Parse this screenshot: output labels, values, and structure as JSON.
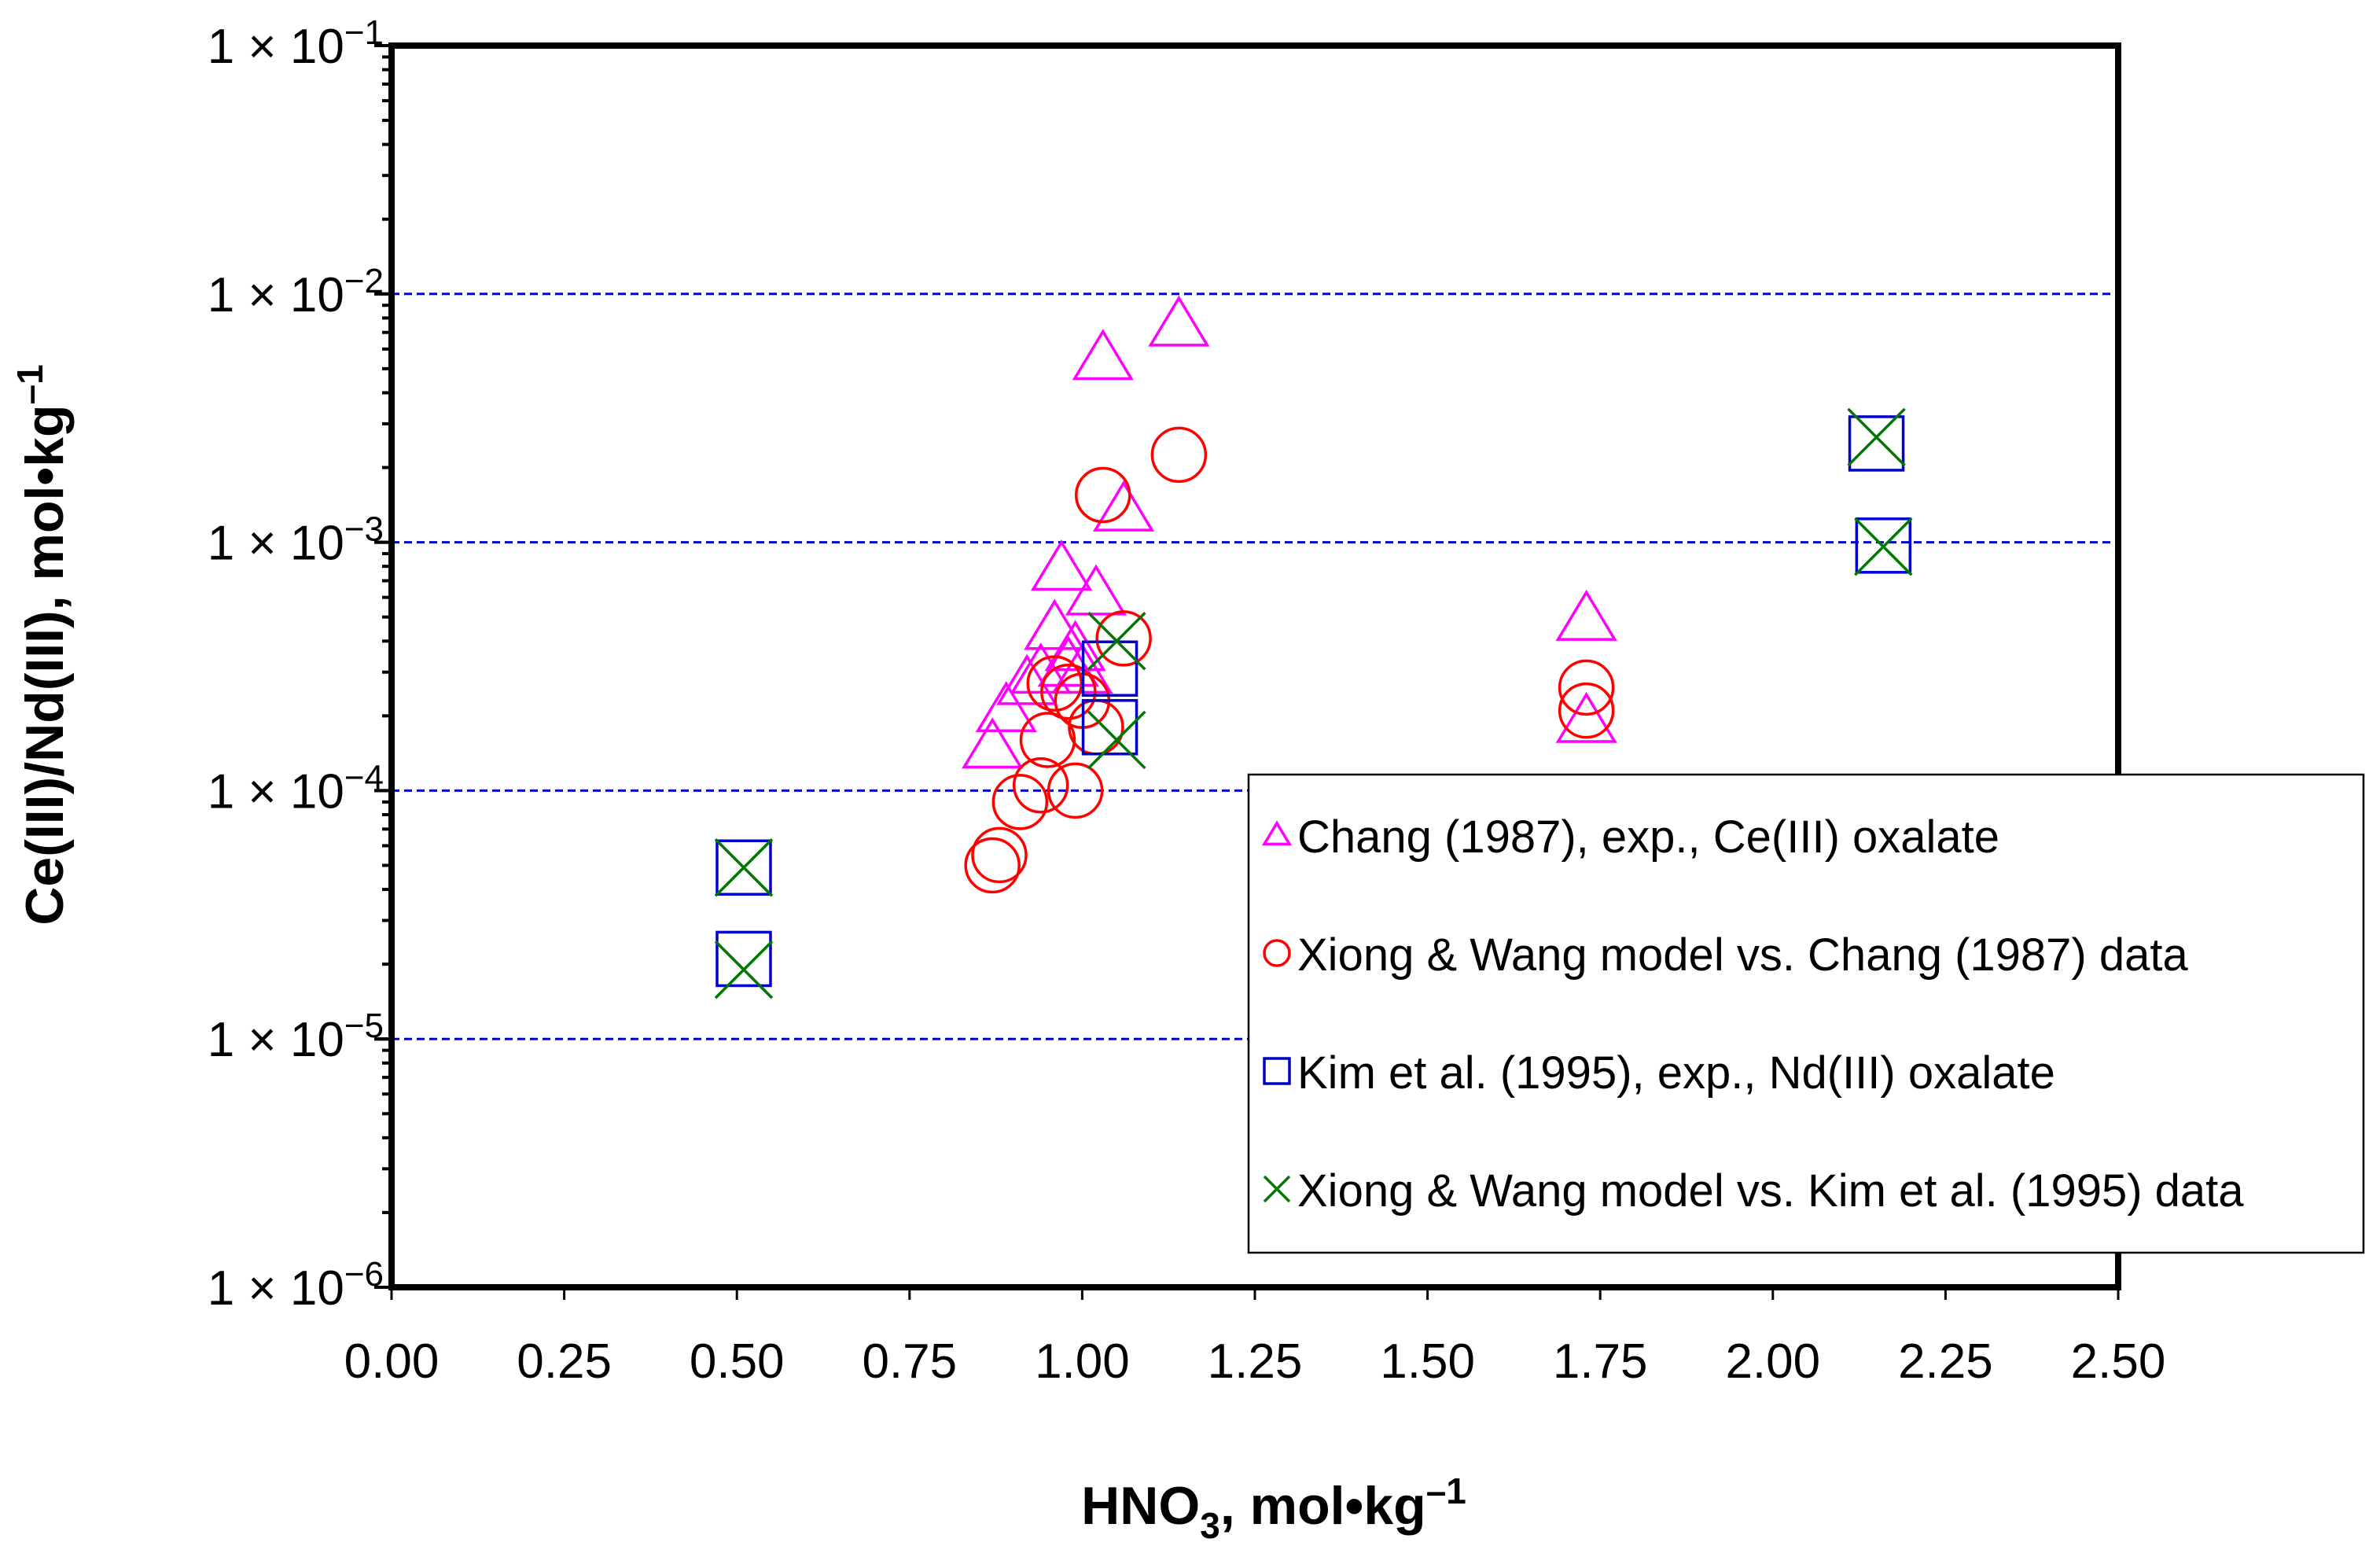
{
  "chart_data": {
    "type": "scatter",
    "title": "",
    "xlabel": {
      "main": "HNO",
      "sub": "3",
      "tail": ", mol•kg",
      "sup": "–1"
    },
    "ylabel": {
      "main": "Ce(III)/Nd(III), mol•kg",
      "sup": "–1"
    },
    "xlim": [
      0,
      2.5
    ],
    "ylim": [
      1e-06,
      0.1
    ],
    "yscale": "log",
    "x_ticks": [
      {
        "value": 0.0,
        "label": "0.00"
      },
      {
        "value": 0.25,
        "label": "0.25"
      },
      {
        "value": 0.5,
        "label": "0.50"
      },
      {
        "value": 0.75,
        "label": "0.75"
      },
      {
        "value": 1.0,
        "label": "1.00"
      },
      {
        "value": 1.25,
        "label": "1.25"
      },
      {
        "value": 1.5,
        "label": "1.50"
      },
      {
        "value": 1.75,
        "label": "1.75"
      },
      {
        "value": 2.0,
        "label": "2.00"
      },
      {
        "value": 2.25,
        "label": "2.25"
      },
      {
        "value": 2.5,
        "label": "2.50"
      }
    ],
    "y_ticks": [
      {
        "value": 0.1,
        "base": "1 × 10",
        "exp": "−1"
      },
      {
        "value": 0.01,
        "base": "1 × 10",
        "exp": "−2"
      },
      {
        "value": 0.001,
        "base": "1 × 10",
        "exp": "−3"
      },
      {
        "value": 0.0001,
        "base": "1 × 10",
        "exp": "−4"
      },
      {
        "value": 1e-05,
        "base": "1 × 10",
        "exp": "−5"
      },
      {
        "value": 1e-06,
        "base": "1 × 10",
        "exp": "−6"
      }
    ],
    "gridlines_y": [
      0.01,
      0.001,
      0.0001,
      1e-05
    ],
    "legend_position": "lower-right",
    "series": [
      {
        "name": "Chang (1987), exp., Ce(III) oxalate",
        "marker": "triangle",
        "color": "#ff00ff",
        "x": [
          0.87,
          0.89,
          0.92,
          0.94,
          0.96,
          0.97,
          0.98,
          0.99,
          1.0,
          1.02,
          1.03,
          1.06,
          1.14,
          1.73,
          1.73
        ],
        "y": [
          0.00015,
          0.00021,
          0.00027,
          0.0003,
          0.00045,
          0.00078,
          0.00032,
          0.00037,
          0.0003,
          0.00062,
          0.0055,
          0.00135,
          0.0075,
          0.00049,
          0.00019
        ]
      },
      {
        "name": "Xiong & Wang model vs. Chang (1987) data",
        "marker": "circle",
        "color": "#ff0000",
        "x": [
          0.87,
          0.88,
          0.91,
          0.94,
          0.95,
          0.96,
          0.98,
          0.99,
          1.0,
          1.02,
          1.03,
          1.06,
          1.14,
          1.73,
          1.73
        ],
        "y": [
          5e-05,
          5.5e-05,
          9e-05,
          0.000105,
          0.00016,
          0.00027,
          0.00025,
          0.0001,
          0.00023,
          0.00018,
          0.00155,
          0.00041,
          0.00225,
          0.00026,
          0.00021
        ]
      },
      {
        "name": "Kim et al. (1995), exp., Nd(III) oxalate",
        "marker": "square",
        "color": "#0000cc",
        "x": [
          0.51,
          0.51,
          1.04,
          1.04,
          2.15,
          2.16
        ],
        "y": [
          4.9e-05,
          2.1e-05,
          0.00031,
          0.00018,
          0.0025,
          0.00097
        ]
      },
      {
        "name": "Xiong & Wang model vs. Kim et al. (1995) data",
        "marker": "x",
        "color": "#007700",
        "x": [
          0.51,
          0.51,
          1.05,
          1.05,
          2.15,
          2.16
        ],
        "y": [
          4.9e-05,
          1.9e-05,
          0.0004,
          0.00016,
          0.00265,
          0.00096
        ]
      }
    ]
  }
}
